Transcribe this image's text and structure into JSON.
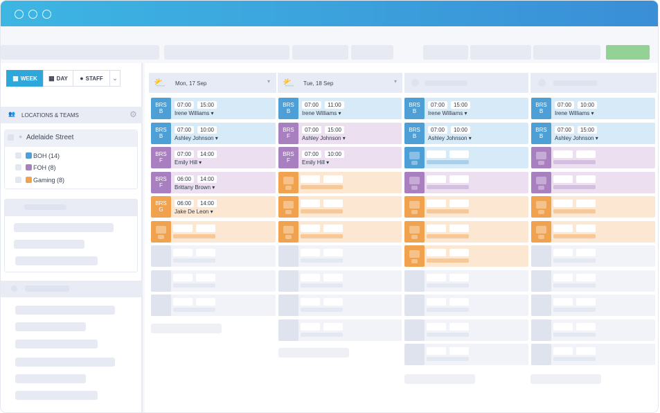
{
  "view_tabs": [
    {
      "label": "WEEK",
      "icon": "calendar-icon"
    },
    {
      "label": "DAY",
      "icon": "calendar-icon"
    },
    {
      "label": "STAFF",
      "icon": "person-icon"
    }
  ],
  "sidebar": {
    "section_title": "LOCATIONS & TEAMS",
    "location": "Adelaide Street",
    "teams": [
      {
        "label": "BOH (14)",
        "color": "#4e9fd6"
      },
      {
        "label": "FOH (8)",
        "color": "#a880bf"
      },
      {
        "label": "Gaming (8)",
        "color": "#f0a24e"
      }
    ]
  },
  "columns": [
    {
      "date": "Mon, 17 Sep",
      "weather": "partly-cloudy-icon"
    },
    {
      "date": "Tue, 18 Sep",
      "weather": "partly-cloudy-icon"
    }
  ],
  "shifts": [
    {
      "col": 0,
      "row": 0,
      "badge": [
        "BRS",
        "B"
      ],
      "start": "07:00",
      "end": "15:00",
      "name": "Irene Williams ▾",
      "color": "blue"
    },
    {
      "col": 0,
      "row": 1,
      "badge": [
        "BRS",
        "B"
      ],
      "start": "07:00",
      "end": "10:00",
      "name": "Ashley Johnson ▾",
      "color": "blue"
    },
    {
      "col": 0,
      "row": 2,
      "badge": [
        "BRS",
        "F"
      ],
      "start": "07:00",
      "end": "14:00",
      "name": "Emily Hill ▾",
      "color": "purple"
    },
    {
      "col": 0,
      "row": 3,
      "badge": [
        "BRS",
        "F"
      ],
      "start": "06:00",
      "end": "14:00",
      "name": "Brittany Brown ▾",
      "color": "purple"
    },
    {
      "col": 0,
      "row": 4,
      "badge": [
        "BRS",
        "G"
      ],
      "start": "06:00",
      "end": "14:00",
      "name": "Jake De Leon ▾",
      "color": "orange"
    },
    {
      "col": 1,
      "row": 0,
      "badge": [
        "BRS",
        "B"
      ],
      "start": "07:00",
      "end": "11:00",
      "name": "Irene Williams ▾",
      "color": "blue"
    },
    {
      "col": 1,
      "row": 1,
      "badge": [
        "BRS",
        "F"
      ],
      "start": "07:00",
      "end": "15:00",
      "name": "Ashley Johnson ▾",
      "color": "purple"
    },
    {
      "col": 1,
      "row": 2,
      "badge": [
        "BRS",
        "F"
      ],
      "start": "07:00",
      "end": "10:00",
      "name": "Emily Hill ▾",
      "color": "purple"
    },
    {
      "col": 2,
      "row": 0,
      "badge": [
        "BRS",
        "B"
      ],
      "start": "07:00",
      "end": "15:00",
      "name": "Irene Williams ▾",
      "color": "blue"
    },
    {
      "col": 2,
      "row": 1,
      "badge": [
        "BRS",
        "B"
      ],
      "start": "07:00",
      "end": "10:00",
      "name": "Ashley Johnson ▾",
      "color": "blue"
    },
    {
      "col": 3,
      "row": 0,
      "badge": [
        "BRS",
        "B"
      ],
      "start": "07:00",
      "end": "10:00",
      "name": "Irene Williams ▾",
      "color": "blue"
    },
    {
      "col": 3,
      "row": 1,
      "badge": [
        "BRS",
        "B"
      ],
      "start": "07:00",
      "end": "15:00",
      "name": "Ashley Johnson ▾",
      "color": "blue"
    }
  ],
  "placeholder_shifts": [
    {
      "col": 0,
      "row": 5,
      "color": "orange"
    },
    {
      "col": 0,
      "row": 6,
      "color": "empty"
    },
    {
      "col": 0,
      "row": 7,
      "color": "empty"
    },
    {
      "col": 0,
      "row": 8,
      "color": "empty"
    },
    {
      "col": 1,
      "row": 3,
      "color": "orange"
    },
    {
      "col": 1,
      "row": 4,
      "color": "orange"
    },
    {
      "col": 1,
      "row": 5,
      "color": "orange"
    },
    {
      "col": 1,
      "row": 6,
      "color": "empty"
    },
    {
      "col": 1,
      "row": 7,
      "color": "empty"
    },
    {
      "col": 1,
      "row": 8,
      "color": "empty"
    },
    {
      "col": 1,
      "row": 9,
      "color": "empty"
    },
    {
      "col": 2,
      "row": 2,
      "color": "blue"
    },
    {
      "col": 2,
      "row": 3,
      "color": "purple"
    },
    {
      "col": 2,
      "row": 4,
      "color": "orange"
    },
    {
      "col": 2,
      "row": 5,
      "color": "orange"
    },
    {
      "col": 2,
      "row": 6,
      "color": "orange"
    },
    {
      "col": 2,
      "row": 7,
      "color": "empty"
    },
    {
      "col": 2,
      "row": 8,
      "color": "empty"
    },
    {
      "col": 2,
      "row": 9,
      "color": "empty"
    },
    {
      "col": 2,
      "row": 10,
      "color": "empty"
    },
    {
      "col": 3,
      "row": 2,
      "color": "purple"
    },
    {
      "col": 3,
      "row": 3,
      "color": "purple"
    },
    {
      "col": 3,
      "row": 4,
      "color": "orange"
    },
    {
      "col": 3,
      "row": 5,
      "color": "orange"
    },
    {
      "col": 3,
      "row": 6,
      "color": "empty"
    },
    {
      "col": 3,
      "row": 7,
      "color": "empty"
    },
    {
      "col": 3,
      "row": 8,
      "color": "empty"
    },
    {
      "col": 3,
      "row": 9,
      "color": "empty"
    },
    {
      "col": 3,
      "row": 10,
      "color": "empty"
    }
  ]
}
